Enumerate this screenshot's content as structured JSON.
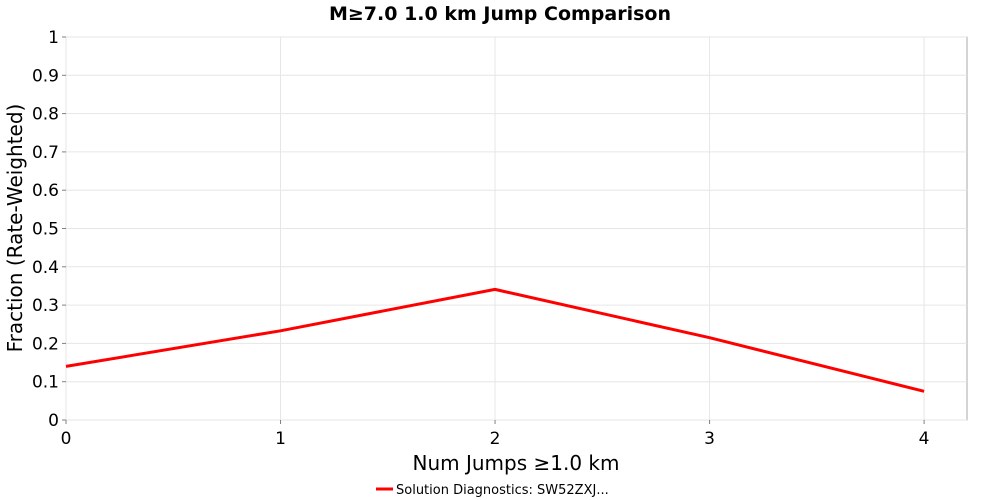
{
  "chart_data": {
    "type": "line",
    "title": "M≥7.0 1.0 km Jump Comparison",
    "xlabel": "Num Jumps ≥1.0 km",
    "ylabel": "Fraction (Rate-Weighted)",
    "xlim": [
      0,
      4.2
    ],
    "ylim": [
      0,
      1
    ],
    "x_ticks": [
      "0",
      "1",
      "2",
      "3",
      "4"
    ],
    "y_ticks": [
      "0",
      "0.1",
      "0.2",
      "0.3",
      "0.4",
      "0.5",
      "0.6",
      "0.7",
      "0.8",
      "0.9",
      "1"
    ],
    "grid": true,
    "legend_position": "bottom-center",
    "series": [
      {
        "name": "Solution Diagnostics: SW52ZXJ...",
        "color": "#ff0000",
        "x": [
          0,
          1,
          2,
          3,
          4
        ],
        "y": [
          0.14,
          0.233,
          0.341,
          0.215,
          0.075
        ]
      }
    ]
  }
}
